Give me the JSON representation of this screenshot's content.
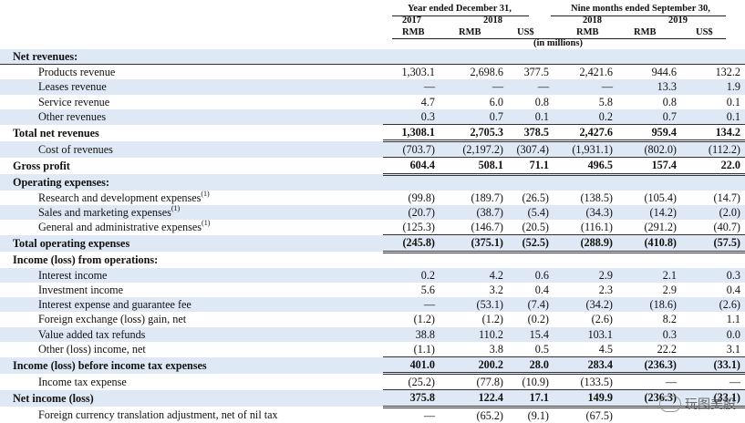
{
  "header": {
    "group1_title": "Year ended December 31,",
    "group2_title": "Nine months ended September 30,",
    "years": [
      "2017",
      "2018",
      "",
      "2018",
      "2019",
      ""
    ],
    "currencies": [
      "RMB",
      "RMB",
      "US$",
      "RMB",
      "RMB",
      "US$"
    ],
    "unit_note": "(in millions)"
  },
  "rows": [
    {
      "label": "Net revenues:",
      "style": "section",
      "values": [
        "",
        "",
        "",
        "",
        "",
        ""
      ]
    },
    {
      "label": "Products revenue",
      "style": "item",
      "values": [
        "1,303.1",
        "2,698.6",
        "377.5",
        "2,421.6",
        "944.6",
        "132.2"
      ]
    },
    {
      "label": "Leases revenue",
      "style": "item",
      "values": [
        "—",
        "—",
        "—",
        "—",
        "13.3",
        "1.9"
      ]
    },
    {
      "label": "Service revenue",
      "style": "item",
      "values": [
        "4.7",
        "6.0",
        "0.8",
        "5.8",
        "0.8",
        "0.1"
      ]
    },
    {
      "label": "Other revenues",
      "style": "item",
      "values": [
        "0.3",
        "0.7",
        "0.1",
        "0.2",
        "0.7",
        "0.1"
      ]
    },
    {
      "label": "Total net revenues",
      "style": "total",
      "values": [
        "1,308.1",
        "2,705.3",
        "378.5",
        "2,427.6",
        "959.4",
        "134.2"
      ]
    },
    {
      "label": "Cost of revenues",
      "style": "item",
      "values": [
        "(703.7)",
        "(2,197.2)",
        "(307.4)",
        "(1,931.1)",
        "(802.0)",
        "(112.2)"
      ]
    },
    {
      "label": "Gross profit",
      "style": "total",
      "values": [
        "604.4",
        "508.1",
        "71.1",
        "496.5",
        "157.4",
        "22.0"
      ]
    },
    {
      "label": "Operating expenses:",
      "style": "section",
      "values": [
        "",
        "",
        "",
        "",
        "",
        ""
      ]
    },
    {
      "label": "Research and development expenses",
      "note": "(1)",
      "style": "item",
      "values": [
        "(99.8)",
        "(189.7)",
        "(26.5)",
        "(138.5)",
        "(105.4)",
        "(14.7)"
      ]
    },
    {
      "label": "Sales and marketing expenses",
      "note": "(1)",
      "style": "item",
      "values": [
        "(20.7)",
        "(38.7)",
        "(5.4)",
        "(34.3)",
        "(14.2)",
        "(2.0)"
      ]
    },
    {
      "label": "General and administrative expenses",
      "note": "(1)",
      "style": "item",
      "values": [
        "(125.3)",
        "(146.7)",
        "(20.5)",
        "(116.1)",
        "(291.2)",
        "(40.7)"
      ]
    },
    {
      "label": "Total operating expenses",
      "style": "total",
      "values": [
        "(245.8)",
        "(375.1)",
        "(52.5)",
        "(288.9)",
        "(410.8)",
        "(57.5)"
      ]
    },
    {
      "label": "Income (loss) from operations:",
      "style": "section",
      "values": [
        "",
        "",
        "",
        "",
        "",
        ""
      ]
    },
    {
      "label": "Interest income",
      "style": "item",
      "values": [
        "0.2",
        "4.2",
        "0.6",
        "2.9",
        "2.1",
        "0.3"
      ]
    },
    {
      "label": "Investment income",
      "style": "item",
      "values": [
        "5.6",
        "3.2",
        "0.4",
        "2.3",
        "2.9",
        "0.4"
      ]
    },
    {
      "label": "Interest expense and guarantee fee",
      "style": "item",
      "values": [
        "—",
        "(53.1)",
        "(7.4)",
        "(34.2)",
        "(18.6)",
        "(2.6)"
      ]
    },
    {
      "label": "Foreign exchange (loss) gain, net",
      "style": "item",
      "values": [
        "(1.2)",
        "(1.2)",
        "(0.2)",
        "(2.6)",
        "8.2",
        "1.1"
      ]
    },
    {
      "label": "Value added tax refunds",
      "style": "item",
      "values": [
        "38.8",
        "110.2",
        "15.4",
        "103.1",
        "0.3",
        "0.0"
      ]
    },
    {
      "label": "Other (loss) income, net",
      "style": "item",
      "values": [
        "(1.1)",
        "3.8",
        "0.5",
        "4.5",
        "22.2",
        "3.1"
      ]
    },
    {
      "label": "Income (loss) before income tax expenses",
      "style": "total",
      "values": [
        "401.0",
        "200.2",
        "28.0",
        "283.4",
        "(236.3)",
        "(33.1)"
      ]
    },
    {
      "label": "Income tax expense",
      "style": "item",
      "values": [
        "(25.2)",
        "(77.8)",
        "(10.9)",
        "(133.5)",
        "—",
        "—"
      ]
    },
    {
      "label": "Net income (loss)",
      "style": "total",
      "values": [
        "375.8",
        "122.4",
        "17.1",
        "149.9",
        "(236.3)",
        "(33.1)"
      ]
    },
    {
      "label": "Foreign currency translation adjustment, net of nil tax",
      "style": "item",
      "values": [
        "—",
        "(65.2)",
        "(9.1)",
        "(67.5)",
        "",
        ""
      ]
    }
  ],
  "watermark": {
    "text": "玩图美股",
    "icon": "wechat-icon"
  }
}
